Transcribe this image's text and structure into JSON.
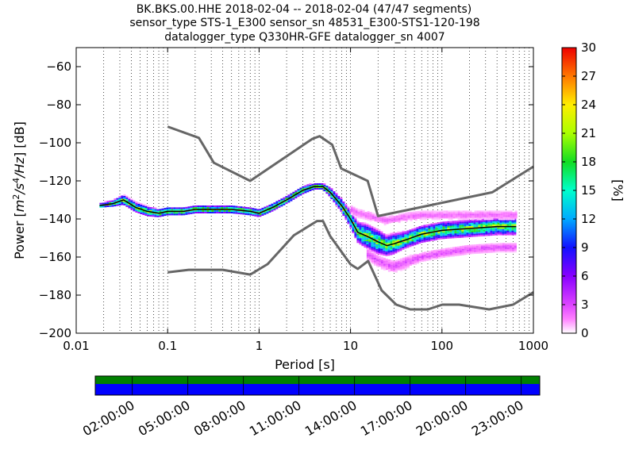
{
  "title_lines": [
    "BK.BKS.00.HHE   2018-02-04 -- 2018-02-04  (47/47 segments)",
    "sensor_type STS-1_E300 sensor_sn 48531_E300-STS1-120-198",
    "datalogger_type Q330HR-GFE datalogger_sn 4007"
  ],
  "chart_data": {
    "type": "heatmap",
    "xlabel": "Period [s]",
    "ylabel": "Power [m²/s⁴/Hz] [dB]",
    "ylabel_parts": {
      "prefix": "Power [",
      "m": "m",
      "e2": "2",
      "s": "/s",
      "e4": "4",
      "hz": "/Hz",
      "suffix": "] [dB]"
    },
    "x_scale": "log",
    "xlim": [
      0.01,
      1000
    ],
    "ylim": [
      -200,
      -50
    ],
    "x_ticks": [
      0.01,
      0.1,
      1,
      10,
      100,
      1000
    ],
    "x_tick_labels": [
      "0.01",
      "0.1",
      "1",
      "10",
      "100",
      "1000"
    ],
    "y_ticks": [
      -200,
      -180,
      -160,
      -140,
      -120,
      -100,
      -80,
      -60
    ],
    "y_tick_labels": [
      "−200",
      "−180",
      "−160",
      "−140",
      "−120",
      "−100",
      "−80",
      "−60"
    ],
    "grid": "dotted vertical",
    "colorbar": {
      "label": "[%]",
      "range": [
        0,
        30
      ],
      "ticks": [
        0,
        3,
        6,
        9,
        12,
        15,
        18,
        21,
        24,
        27,
        30
      ],
      "tick_labels": [
        "0",
        "3",
        "6",
        "9",
        "12",
        "15",
        "18",
        "21",
        "24",
        "27",
        "30"
      ],
      "colormap": "pqlx"
    },
    "noise_models": {
      "high": {
        "x": [
          0.1,
          0.22,
          0.32,
          0.8,
          3.8,
          4.6,
          6.3,
          7.9,
          15.4,
          20,
          354.8,
          1000
        ],
        "y": [
          -91.5,
          -97.4,
          -110.5,
          -120,
          -98,
          -96.5,
          -101,
          -113.5,
          -120,
          -138.5,
          -126,
          -112.5
        ]
      },
      "low": {
        "x": [
          0.1,
          0.17,
          0.4,
          0.8,
          1.24,
          2.4,
          4.3,
          5,
          6,
          10,
          12,
          15.6,
          21.9,
          31.6,
          45,
          70,
          101,
          154,
          328,
          600,
          1000
        ],
        "y": [
          -168,
          -166.7,
          -166.7,
          -169.2,
          -163.7,
          -148.6,
          -141.1,
          -141.1,
          -149,
          -163.8,
          -166.2,
          -162.1,
          -177.5,
          -185,
          -187.5,
          -187.5,
          -185,
          -185,
          -187.5,
          -185,
          -178.5
        ]
      }
    },
    "mode_curve": {
      "x": [
        0.018,
        0.025,
        0.033,
        0.045,
        0.06,
        0.08,
        0.1,
        0.15,
        0.2,
        0.3,
        0.5,
        0.8,
        1.0,
        1.4,
        2.0,
        3.0,
        4.0,
        5.0,
        6.0,
        8.0,
        10.0,
        12.0,
        15.0,
        20.0,
        25.0,
        30.0,
        40.0,
        60.0,
        100.0,
        200.0,
        400.0,
        650.0
      ],
      "y": [
        -133,
        -132,
        -130,
        -134,
        -136,
        -137,
        -136,
        -136,
        -135,
        -135,
        -135,
        -136,
        -137,
        -134,
        -130,
        -125,
        -123,
        -123,
        -126,
        -133,
        -140,
        -147,
        -149,
        -152,
        -154,
        -153,
        -151,
        -148,
        -146,
        -145,
        -144,
        -144
      ]
    },
    "pdf_clusters": [
      {
        "x": [
          0.018,
          0.025,
          0.033,
          0.045,
          0.06,
          0.08,
          0.1,
          0.15,
          0.2,
          0.3,
          0.5,
          0.8,
          1.0,
          1.4,
          2.0,
          3.0,
          4.0,
          5.0,
          6.0,
          8.0,
          10.0,
          12.0,
          15.0,
          20.0,
          25.0,
          30.0,
          40.0,
          60.0,
          100.0,
          200.0,
          400.0,
          650.0
        ],
        "y": [
          -133,
          -132,
          -130,
          -134,
          -136,
          -137,
          -136,
          -136,
          -135,
          -135,
          -135,
          -136,
          -137,
          -134,
          -130,
          -125,
          -123,
          -123,
          -126,
          -133,
          -140,
          -147,
          -149,
          -152,
          -154,
          -153,
          -151,
          -148,
          -146,
          -145,
          -144,
          -144
        ],
        "spread_db": [
          1.5,
          2,
          3,
          3,
          3,
          2.5,
          2.5,
          2.5,
          2.5,
          2.5,
          2.5,
          2.5,
          2.5,
          2.5,
          2.5,
          2.5,
          2,
          2,
          3,
          4,
          5,
          6,
          7,
          7,
          6,
          6,
          5,
          5,
          5,
          5,
          5,
          5
        ],
        "peak_pct": 28
      },
      {
        "x": [
          10,
          12,
          15,
          20,
          25,
          30,
          40,
          60,
          100,
          200,
          400,
          650
        ],
        "y": [
          -135,
          -137,
          -138,
          -140,
          -141,
          -140,
          -139,
          -138,
          -138,
          -138,
          -138,
          -138
        ],
        "spread_db": [
          3,
          3,
          3,
          3,
          3,
          3,
          3,
          3,
          3,
          3,
          3,
          3
        ],
        "peak_pct": 3
      },
      {
        "x": [
          15,
          20,
          25,
          30,
          40,
          60,
          100,
          200,
          400,
          650
        ],
        "y": [
          -158,
          -162,
          -164,
          -165,
          -163,
          -160,
          -158,
          -156,
          -155,
          -155
        ],
        "spread_db": [
          4,
          4,
          4,
          4,
          4,
          3,
          3,
          3,
          3,
          3
        ],
        "peak_pct": 4
      }
    ]
  },
  "timeline": {
    "tick_labels": [
      "02:00:00",
      "05:00:00",
      "08:00:00",
      "11:00:00",
      "14:00:00",
      "17:00:00",
      "20:00:00",
      "23:00:00"
    ],
    "tick_hours": [
      2,
      5,
      8,
      11,
      14,
      17,
      20,
      23
    ],
    "range_hours": [
      0,
      24
    ],
    "data_color": "#008000",
    "coverage_color": "#0000ff"
  }
}
